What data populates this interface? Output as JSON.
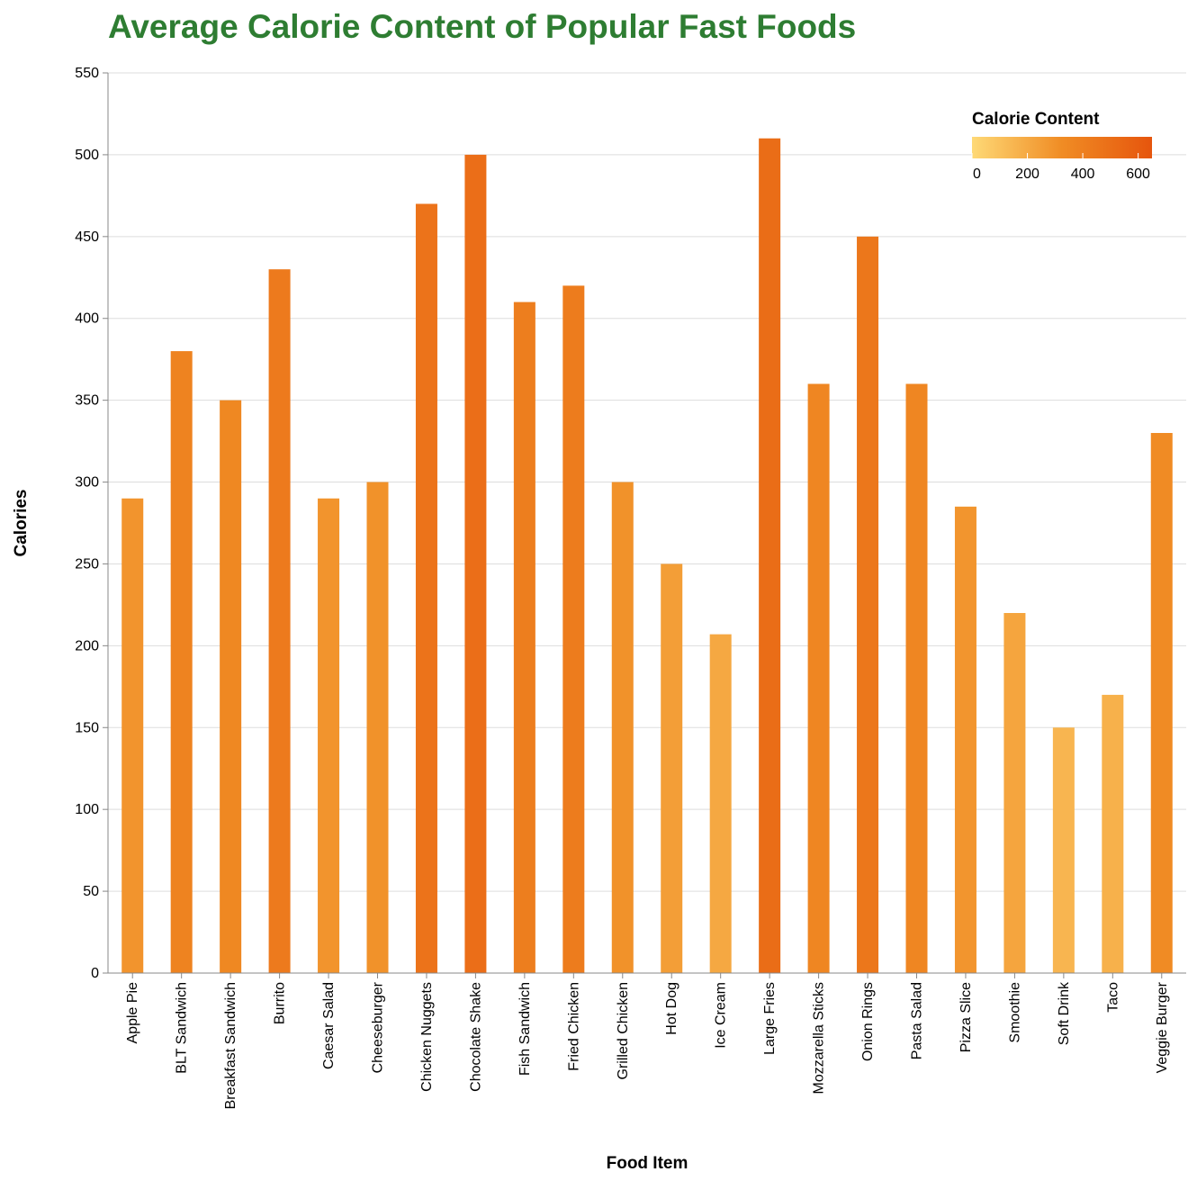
{
  "chart_data": {
    "type": "bar",
    "title": "Average Calorie Content of Popular Fast Foods",
    "xlabel": "Food Item",
    "ylabel": "Calories",
    "ylim": [
      0,
      550
    ],
    "yticks": [
      0,
      50,
      100,
      150,
      200,
      250,
      300,
      350,
      400,
      450,
      500,
      550
    ],
    "categories": [
      "Apple Pie",
      "BLT Sandwich",
      "Breakfast Sandwich",
      "Burrito",
      "Caesar Salad",
      "Cheeseburger",
      "Chicken Nuggets",
      "Chocolate Shake",
      "Fish Sandwich",
      "Fried Chicken",
      "Grilled Chicken",
      "Hot Dog",
      "Ice Cream",
      "Large Fries",
      "Mozzarella Sticks",
      "Onion Rings",
      "Pasta Salad",
      "Pizza Slice",
      "Smoothie",
      "Soft Drink",
      "Taco",
      "Veggie Burger"
    ],
    "values": [
      290,
      380,
      350,
      430,
      290,
      300,
      470,
      500,
      410,
      420,
      300,
      250,
      207,
      510,
      360,
      450,
      360,
      285,
      220,
      150,
      170,
      330
    ],
    "grid": true,
    "legend": {
      "title": "Calorie Content",
      "placement": "top-right",
      "type": "gradient",
      "domain": [
        0,
        650
      ],
      "ticks": [
        0,
        200,
        400,
        600
      ]
    },
    "colors": {
      "title": "#2e7d32",
      "gradient_start": "#fed976",
      "gradient_mid": "#f08c24",
      "gradient_end": "#e6550d",
      "grid": "#dddddd",
      "axis": "#888888"
    }
  }
}
